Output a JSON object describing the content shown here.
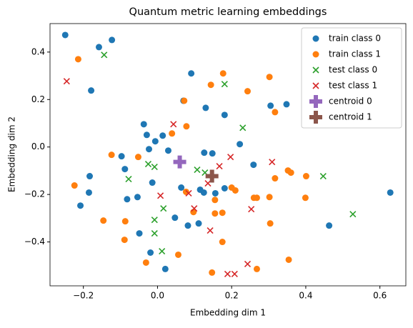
{
  "chart_data": {
    "type": "scatter",
    "title": "Quantum metric learning embeddings",
    "xlabel": "Embedding dim 1",
    "ylabel": "Embedding dim 2",
    "xlim": [
      -0.29,
      0.67
    ],
    "ylim": [
      -0.585,
      0.52
    ],
    "xticks": [
      {
        "value": -0.2,
        "label": "−0.2"
      },
      {
        "value": 0,
        "label": "0.0"
      },
      0.2,
      0.4,
      0.6
    ],
    "yticks": [
      {
        "value": -0.4,
        "label": "−0.4"
      },
      {
        "value": -0.2,
        "label": "−0.2"
      },
      {
        "value": 0,
        "label": "0.0"
      },
      0.2,
      0.4
    ],
    "legend": "upper right",
    "series": [
      {
        "name": "train class 0",
        "color": "#1f77b4",
        "marker": "o",
        "x": [
          -0.249,
          -0.123,
          -0.158,
          -0.179,
          0.091,
          0.07,
          0.13,
          0.181,
          0.305,
          0.348,
          -0.037,
          -0.029,
          -0.006,
          0.014,
          -0.023,
          -0.097,
          -0.088,
          0.029,
          0.126,
          0.148,
          0.222,
          0.259,
          -0.183,
          -0.185,
          -0.208,
          -0.082,
          -0.054,
          -0.014,
          0.064,
          0.115,
          0.125,
          0.156,
          0.181,
          0.047,
          0.082,
          0.111,
          -0.049,
          -0.019,
          0.021,
          0.463,
          0.628
        ],
        "y": [
          0.472,
          0.451,
          0.421,
          0.238,
          0.31,
          0.195,
          0.165,
          0.135,
          0.174,
          0.18,
          0.096,
          0.051,
          0.024,
          0.048,
          -0.009,
          -0.039,
          -0.093,
          -0.015,
          -0.024,
          -0.027,
          0.012,
          -0.075,
          -0.123,
          -0.192,
          -0.247,
          -0.22,
          -0.211,
          -0.15,
          -0.171,
          -0.18,
          -0.192,
          -0.195,
          -0.174,
          -0.298,
          -0.331,
          -0.322,
          -0.364,
          -0.445,
          -0.514,
          -0.331,
          -0.192
        ]
      },
      {
        "name": "train class 1",
        "color": "#ff7f0e",
        "marker": "o",
        "x": [
          -0.214,
          0.177,
          0.302,
          0.144,
          0.243,
          0.072,
          0.317,
          0.078,
          0.039,
          -0.124,
          -0.052,
          -0.224,
          -0.146,
          -0.087,
          -0.089,
          -0.031,
          0.056,
          0.077,
          0.097,
          0.155,
          0.155,
          0.175,
          0.175,
          0.147,
          0.2,
          0.21,
          0.26,
          0.268,
          0.302,
          0.317,
          0.352,
          0.36,
          0.401,
          0.399,
          0.304,
          0.354,
          0.268
        ],
        "y": [
          0.37,
          0.31,
          0.295,
          0.262,
          0.235,
          0.195,
          0.147,
          0.087,
          0.057,
          -0.033,
          -0.042,
          -0.162,
          -0.31,
          -0.313,
          -0.391,
          -0.487,
          -0.454,
          -0.189,
          -0.274,
          -0.223,
          -0.28,
          -0.277,
          -0.4,
          -0.529,
          -0.171,
          -0.183,
          -0.214,
          -0.214,
          -0.211,
          -0.132,
          -0.099,
          -0.108,
          -0.123,
          -0.214,
          -0.322,
          -0.475,
          -0.514
        ]
      },
      {
        "name": "test class 0",
        "color": "#2ca02c",
        "marker": "x",
        "x": [
          -0.144,
          0.181,
          0.23,
          -0.078,
          -0.025,
          -0.008,
          0.107,
          0.128,
          0.016,
          -0.008,
          -0.008,
          0.012,
          0.447,
          0.527
        ],
        "y": [
          0.388,
          0.265,
          0.081,
          -0.135,
          -0.072,
          -0.084,
          -0.096,
          -0.108,
          -0.259,
          -0.307,
          -0.364,
          -0.439,
          -0.123,
          -0.283
        ]
      },
      {
        "name": "test class 1",
        "color": "#d62728",
        "marker": "x",
        "x": [
          -0.245,
          0.043,
          0.197,
          0.167,
          0.136,
          0.008,
          0.084,
          0.099,
          0.142,
          0.309,
          0.253,
          0.243,
          0.189,
          0.208
        ],
        "y": [
          0.277,
          0.096,
          -0.042,
          -0.081,
          -0.153,
          -0.205,
          -0.195,
          -0.259,
          -0.352,
          -0.063,
          -0.262,
          -0.493,
          -0.535,
          -0.535
        ]
      },
      {
        "name": "centroid 0",
        "color": "#9467bd",
        "marker": "P",
        "x": [
          0.06
        ],
        "y": [
          -0.063
        ]
      },
      {
        "name": "centroid 1",
        "color": "#8c564b",
        "marker": "P",
        "x": [
          0.147
        ],
        "y": [
          -0.123
        ]
      }
    ]
  }
}
